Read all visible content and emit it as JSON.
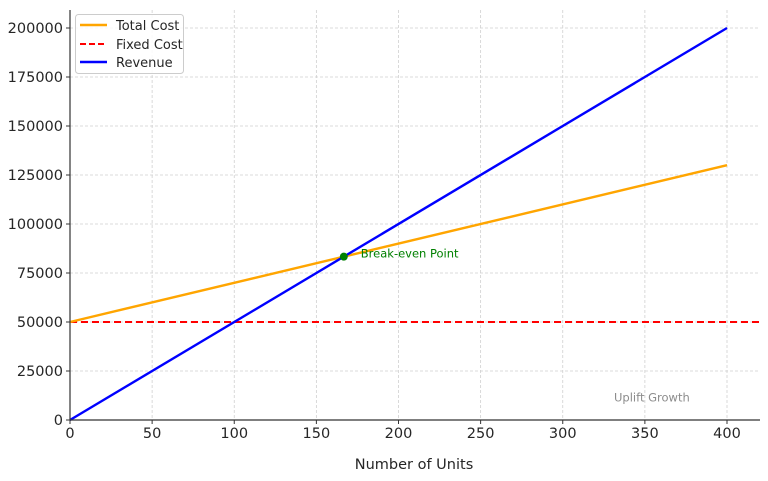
{
  "chart_data": {
    "type": "line",
    "title": "",
    "xlabel": "Number of Units",
    "ylabel": "",
    "xlim": [
      0,
      420
    ],
    "ylim": [
      0,
      210000
    ],
    "grid": true,
    "legend_position": "upper left",
    "x_ticks": [
      0,
      50,
      100,
      150,
      200,
      250,
      300,
      350,
      400
    ],
    "y_ticks": [
      0,
      25000,
      50000,
      75000,
      100000,
      125000,
      150000,
      175000,
      200000
    ],
    "series": [
      {
        "name": "Total Cost",
        "color": "#FFA500",
        "style": "solid",
        "x": [
          0,
          400
        ],
        "values": [
          50000,
          130000
        ]
      },
      {
        "name": "Fixed Cost",
        "color": "#FF0000",
        "style": "dashed",
        "x": [
          0,
          420
        ],
        "values": [
          50000,
          50000
        ],
        "type": "hline"
      },
      {
        "name": "Revenue",
        "color": "#0000FF",
        "style": "solid",
        "x": [
          0,
          400
        ],
        "values": [
          0,
          200000
        ]
      }
    ],
    "annotations": [
      {
        "text": "Break-even Point",
        "x": 166.7,
        "y": 83333,
        "color": "#008000",
        "marker": "dot"
      },
      {
        "text": "Uplift Growth",
        "x": 330,
        "y": 10000,
        "color": "#808080"
      }
    ]
  },
  "labels": {
    "xlabel": "Number of Units",
    "legend": [
      "Total Cost",
      "Fixed Cost",
      "Revenue"
    ],
    "breakeven": "Break-even Point",
    "watermark": "Uplift Growth",
    "x_ticks": [
      "0",
      "50",
      "100",
      "150",
      "200",
      "250",
      "300",
      "350",
      "400"
    ],
    "y_ticks": [
      "0",
      "25000",
      "50000",
      "75000",
      "100000",
      "125000",
      "150000",
      "175000",
      "200000"
    ]
  }
}
